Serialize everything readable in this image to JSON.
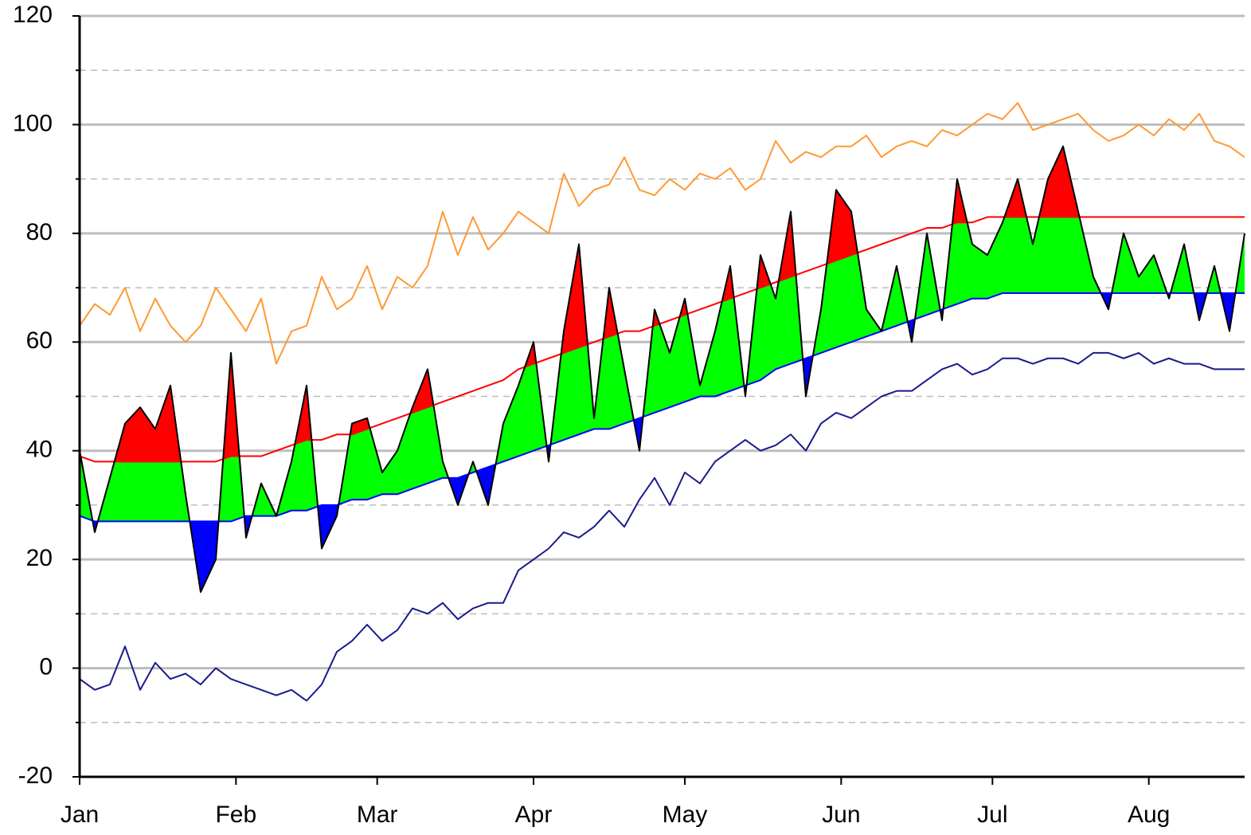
{
  "chart_data": {
    "type": "line",
    "x": [
      0,
      3,
      6,
      9,
      12,
      15,
      18,
      21,
      24,
      27,
      30,
      33,
      36,
      39,
      42,
      45,
      48,
      51,
      54,
      57,
      60,
      63,
      66,
      69,
      72,
      75,
      78,
      81,
      84,
      87,
      90,
      93,
      96,
      99,
      102,
      105,
      108,
      111,
      114,
      117,
      120,
      123,
      126,
      129,
      132,
      135,
      138,
      141,
      144,
      147,
      150,
      153,
      156,
      159,
      162,
      165,
      168,
      171,
      174,
      177,
      180,
      183,
      186,
      189,
      192,
      195,
      198,
      201,
      204,
      207,
      210,
      213,
      216,
      219,
      222,
      225,
      228,
      231
    ],
    "xlim": [
      0,
      231
    ],
    "xticks": [
      {
        "value": 0,
        "label": "Jan"
      },
      {
        "value": 31,
        "label": "Feb"
      },
      {
        "value": 59,
        "label": "Mar"
      },
      {
        "value": 90,
        "label": "Apr"
      },
      {
        "value": 120,
        "label": "May"
      },
      {
        "value": 151,
        "label": "Jun"
      },
      {
        "value": 181,
        "label": "Jul"
      },
      {
        "value": 212,
        "label": "Aug"
      }
    ],
    "ylim": [
      -20,
      120
    ],
    "yticks": [
      -20,
      0,
      20,
      40,
      60,
      80,
      100,
      120
    ],
    "grid": true,
    "minor_grid": true,
    "series": [
      {
        "color": "#000000",
        "fill_above": "#ff0000",
        "fill_between": "#00ff00",
        "fill_below": "#0000ff",
        "values": [
          40,
          25,
          35,
          45,
          48,
          44,
          52,
          32,
          14,
          20,
          58,
          24,
          34,
          28,
          38,
          52,
          22,
          28,
          45,
          46,
          36,
          40,
          48,
          55,
          38,
          30,
          38,
          30,
          45,
          52,
          60,
          38,
          62,
          78,
          46,
          70,
          55,
          40,
          66,
          58,
          68,
          52,
          62,
          74,
          50,
          76,
          68,
          84,
          50,
          66,
          88,
          84,
          66,
          62,
          74,
          60,
          80,
          64,
          90,
          78,
          76,
          82,
          90,
          78,
          90,
          96,
          84,
          72,
          66,
          80,
          72,
          76,
          68,
          78,
          64,
          74,
          62,
          80
        ]
      },
      {
        "color": "#ff0000",
        "bound": "upper",
        "values": [
          39,
          38,
          38,
          38,
          38,
          38,
          38,
          38,
          38,
          38,
          39,
          39,
          39,
          40,
          41,
          42,
          42,
          43,
          43,
          44,
          45,
          46,
          47,
          48,
          49,
          50,
          51,
          52,
          53,
          55,
          56,
          57,
          58,
          59,
          60,
          61,
          62,
          62,
          63,
          64,
          65,
          66,
          67,
          68,
          69,
          70,
          71,
          72,
          73,
          74,
          75,
          76,
          77,
          78,
          79,
          80,
          81,
          81,
          82,
          82,
          83,
          83,
          83,
          83,
          83,
          83,
          83,
          83,
          83,
          83,
          83,
          83,
          83,
          83,
          83,
          83,
          83,
          83
        ]
      },
      {
        "color": "#0000ff",
        "bound": "lower",
        "values": [
          28,
          27,
          27,
          27,
          27,
          27,
          27,
          27,
          27,
          27,
          27,
          28,
          28,
          28,
          29,
          29,
          30,
          30,
          31,
          31,
          32,
          32,
          33,
          34,
          35,
          35,
          36,
          37,
          38,
          39,
          40,
          41,
          42,
          43,
          44,
          44,
          45,
          46,
          47,
          48,
          49,
          50,
          50,
          51,
          52,
          53,
          55,
          56,
          57,
          58,
          59,
          60,
          61,
          62,
          63,
          64,
          65,
          66,
          67,
          68,
          68,
          69,
          69,
          69,
          69,
          69,
          69,
          69,
          69,
          69,
          69,
          69,
          69,
          69,
          69,
          69,
          69,
          69
        ]
      },
      {
        "color": "#ff9933",
        "values": [
          63,
          67,
          65,
          70,
          62,
          68,
          63,
          60,
          63,
          70,
          66,
          62,
          68,
          56,
          62,
          63,
          72,
          66,
          68,
          74,
          66,
          72,
          70,
          74,
          84,
          76,
          83,
          77,
          80,
          84,
          82,
          80,
          91,
          85,
          88,
          89,
          94,
          88,
          87,
          90,
          88,
          91,
          90,
          92,
          88,
          90,
          97,
          93,
          95,
          94,
          96,
          96,
          98,
          94,
          96,
          97,
          96,
          99,
          98,
          100,
          102,
          101,
          104,
          99,
          100,
          101,
          102,
          99,
          97,
          98,
          100,
          98,
          101,
          99,
          102,
          97,
          96,
          94
        ]
      },
      {
        "color": "#1a1a8c",
        "values": [
          -2,
          -4,
          -3,
          4,
          -4,
          1,
          -2,
          -1,
          -3,
          0,
          -2,
          -3,
          -4,
          -5,
          -4,
          -6,
          -3,
          3,
          5,
          8,
          5,
          7,
          11,
          10,
          12,
          9,
          11,
          12,
          12,
          18,
          20,
          22,
          25,
          24,
          26,
          29,
          26,
          31,
          35,
          30,
          36,
          34,
          38,
          40,
          42,
          40,
          41,
          43,
          40,
          45,
          47,
          46,
          48,
          50,
          51,
          51,
          53,
          55,
          56,
          54,
          55,
          57,
          57,
          56,
          57,
          57,
          56,
          58,
          58,
          57,
          58,
          56,
          57,
          56,
          56,
          55,
          55,
          55
        ]
      }
    ]
  }
}
